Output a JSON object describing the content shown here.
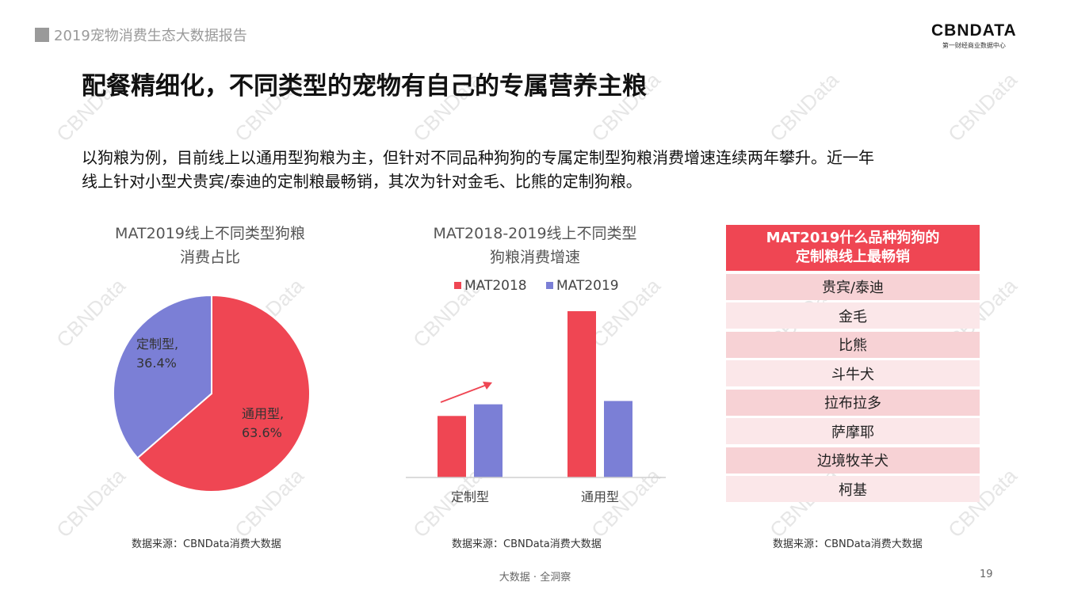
{
  "header": {
    "report_title": "2019宠物消费生态大数据报告"
  },
  "logo": {
    "name": "CBNDATA",
    "subtitle": "第一财经商业数据中心"
  },
  "slide": {
    "title": "配餐精细化，不同类型的宠物有自己的专属营养主粮",
    "description_line1": "以狗粮为例，目前线上以通用型狗粮为主，但针对不同品种狗狗的专属定制型狗粮消费增速连续两年攀升。近一年",
    "description_line2": "线上针对小型犬贵宾/泰迪的定制粮最畅销，其次为针对金毛、比熊的定制狗粮。"
  },
  "watermark": "CBNData",
  "chart_data": [
    {
      "type": "pie",
      "title_line1": "MAT2019线上不同类型狗粮",
      "title_line2": "消费占比",
      "slices": [
        {
          "label": "通用型,",
          "value_label": "63.6%",
          "value": 63.6,
          "color": "#ef4653"
        },
        {
          "label": "定制型,",
          "value_label": "36.4%",
          "value": 36.4,
          "color": "#7b7fd6"
        }
      ],
      "source": "数据来源：CBNData消费大数据"
    },
    {
      "type": "bar",
      "title_line1": "MAT2018-2019线上不同类型",
      "title_line2": "狗粮消费增速",
      "categories": [
        "定制型",
        "通用型"
      ],
      "series": [
        {
          "name": "MAT2018",
          "values": [
            0.37,
            1.0
          ],
          "color": "#ef4653"
        },
        {
          "name": "MAT2019",
          "values": [
            0.44,
            0.46
          ],
          "color": "#7b7fd6"
        }
      ],
      "ylim": [
        0,
        1.0
      ],
      "legend_position": "top",
      "grid": false,
      "annotation": "arrow",
      "source": "数据来源：CBNData消费大数据"
    },
    {
      "type": "table",
      "header_line1": "MAT2019什么品种狗狗的",
      "header_line2": "定制粮线上最畅销",
      "rows": [
        "贵宾/泰迪",
        "金毛",
        "比熊",
        "斗牛犬",
        "拉布拉多",
        "萨摩耶",
        "边境牧羊犬",
        "柯基"
      ],
      "source": "数据来源：CBNData消费大数据"
    }
  ],
  "footer": {
    "tagline": "大数据 · 全洞察",
    "page_number": "19"
  }
}
